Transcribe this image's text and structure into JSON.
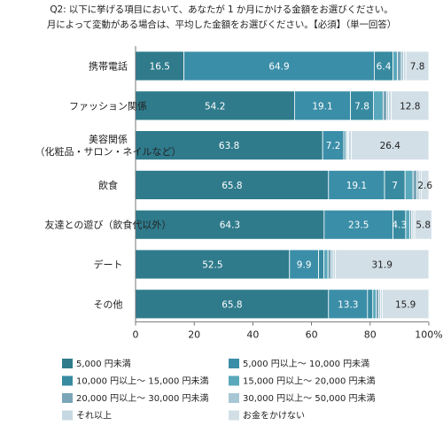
{
  "title_lines": [
    "Q2: 以下に挙げる項目において、あなたが 1 か月にかける金額をお選びください。",
    "月によって変動がある場合は、平均した金額をお選びください。【必須】（単一回答）"
  ],
  "chart_data": {
    "type": "bar",
    "orientation": "horizontal",
    "stacked": true,
    "categories": [
      [
        "携帯電話"
      ],
      [
        "ファッション関係"
      ],
      [
        "美容関係",
        "（化粧品・サロン・ネイルなど）"
      ],
      [
        "飲食"
      ],
      [
        "友達との遊び（飲食代以外）"
      ],
      [
        "デート"
      ],
      [
        "その他"
      ]
    ],
    "xlim": [
      0,
      100
    ],
    "xticks": [
      0,
      20,
      40,
      60,
      80
    ],
    "xtick_last_label": "100%",
    "legend_position": "bottom",
    "series": [
      {
        "name": "5,000 円未満",
        "color": "#2f7b8c",
        "values": [
          16.5,
          54.2,
          63.8,
          65.8,
          64.3,
          52.5,
          65.8
        ],
        "labels": [
          "16.5",
          "54.2",
          "63.8",
          "65.8",
          "64.3",
          "52.5",
          "65.8"
        ]
      },
      {
        "name": "5,000 円以上～ 10,000 円未満",
        "color": "#3b8ea8",
        "values": [
          64.9,
          19.1,
          7.2,
          19.1,
          23.5,
          9.9,
          13.3
        ],
        "labels": [
          "64.9",
          "19.1",
          "7.2",
          "19.1",
          "23.5",
          "9.9",
          "13.3"
        ]
      },
      {
        "name": "10,000 円以上～ 15,000 円未満",
        "color": "#378aa0",
        "values": [
          6.4,
          7.8,
          0.6,
          7,
          4.3,
          1.8,
          1.8
        ],
        "labels": [
          "6.4",
          "7.8",
          "",
          "7",
          "4.3",
          "",
          ""
        ]
      },
      {
        "name": "15,000 円以上～ 20,000 円未満",
        "color": "#5aa8bb",
        "values": [
          1.5,
          3.3,
          0.4,
          2.7,
          1.4,
          1.4,
          1.1
        ],
        "labels": [
          "",
          "",
          "",
          "",
          "",
          "",
          ""
        ]
      },
      {
        "name": "20,000 円以上～ 30,000 円未満",
        "color": "#7aa6b8",
        "values": [
          1.3,
          1.3,
          0.3,
          1.3,
          0.6,
          1.1,
          0.9
        ],
        "labels": [
          "",
          "",
          "",
          "",
          "",
          "",
          ""
        ]
      },
      {
        "name": "30,000 円以上～ 50,000 円未満",
        "color": "#a7c7d4",
        "values": [
          0.8,
          0.6,
          0.3,
          0.8,
          0.5,
          0.7,
          0.6
        ],
        "labels": [
          "",
          "",
          "",
          "",
          "",
          "",
          ""
        ]
      },
      {
        "name": "それ以上",
        "color": "#c6d9e2",
        "values": [
          0.8,
          0.9,
          1.0,
          0.7,
          0.6,
          0.7,
          0.6
        ],
        "labels": [
          "",
          "",
          "",
          "",
          "",
          "",
          ""
        ]
      },
      {
        "name": "お金をかけない",
        "color": "#d2dfe7",
        "values": [
          7.8,
          12.8,
          26.4,
          2.6,
          5.8,
          31.9,
          15.9
        ],
        "labels": [
          "7.8",
          "12.8",
          "26.4",
          "2.6",
          "5.8",
          "31.9",
          "15.9"
        ]
      }
    ]
  }
}
